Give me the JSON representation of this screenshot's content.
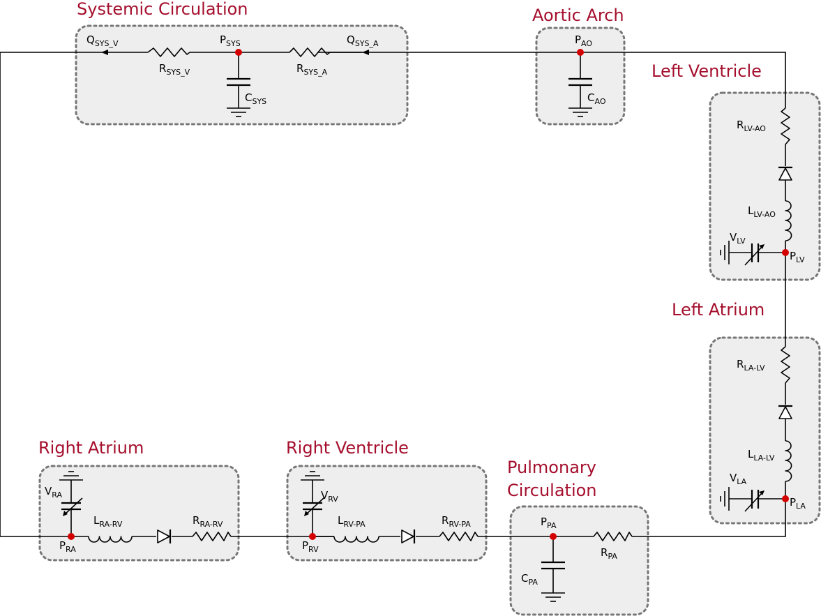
{
  "diagram": {
    "sections": {
      "systemic": "Systemic Circulation",
      "aortic": "Aortic Arch",
      "lv": "Left Ventricle",
      "la": "Left Atrium",
      "ra": "Right Atrium",
      "rv": "Right Ventricle",
      "pulm_line1": "Pulmonary",
      "pulm_line2": "Circulation"
    },
    "labels": {
      "q_sys_v": {
        "main": "Q",
        "sub": "SYS_V"
      },
      "p_sys": {
        "main": "P",
        "sub": "SYS"
      },
      "q_sys_a": {
        "main": "Q",
        "sub": "SYS_A"
      },
      "r_sys_v": {
        "main": "R",
        "sub": "SYS_V"
      },
      "r_sys_a": {
        "main": "R",
        "sub": "SYS_A"
      },
      "c_sys": {
        "main": "C",
        "sub": "SYS"
      },
      "p_ao": {
        "main": "P",
        "sub": "AO"
      },
      "c_ao": {
        "main": "C",
        "sub": "AO"
      },
      "r_lv_ao": {
        "main": "R",
        "sub": "LV-AO"
      },
      "l_lv_ao": {
        "main": "L",
        "sub": "LV-AO"
      },
      "v_lv": {
        "main": "V",
        "sub": "LV"
      },
      "p_lv": {
        "main": "P",
        "sub": "LV"
      },
      "r_la_lv": {
        "main": "R",
        "sub": "LA-LV"
      },
      "l_la_lv": {
        "main": "L",
        "sub": "LA-LV"
      },
      "v_la": {
        "main": "V",
        "sub": "LA"
      },
      "p_la": {
        "main": "P",
        "sub": "LA"
      },
      "v_ra": {
        "main": "V",
        "sub": "RA"
      },
      "l_ra_rv": {
        "main": "L",
        "sub": "RA-RV"
      },
      "r_ra_rv": {
        "main": "R",
        "sub": "RA-RV"
      },
      "p_ra": {
        "main": "P",
        "sub": "RA"
      },
      "v_rv": {
        "main": "V",
        "sub": "RV"
      },
      "l_rv_pa": {
        "main": "L",
        "sub": "RV-PA"
      },
      "r_rv_pa": {
        "main": "R",
        "sub": "RV-PA"
      },
      "p_rv": {
        "main": "P",
        "sub": "RV"
      },
      "p_pa": {
        "main": "P",
        "sub": "PA"
      },
      "r_pa": {
        "main": "R",
        "sub": "PA"
      },
      "c_pa": {
        "main": "C",
        "sub": "PA"
      }
    },
    "colors": {
      "title": "#a50f2d",
      "node": "#d40000",
      "box_fill": "#eeeeee",
      "box_border": "#777777",
      "wire": "#000000"
    }
  }
}
